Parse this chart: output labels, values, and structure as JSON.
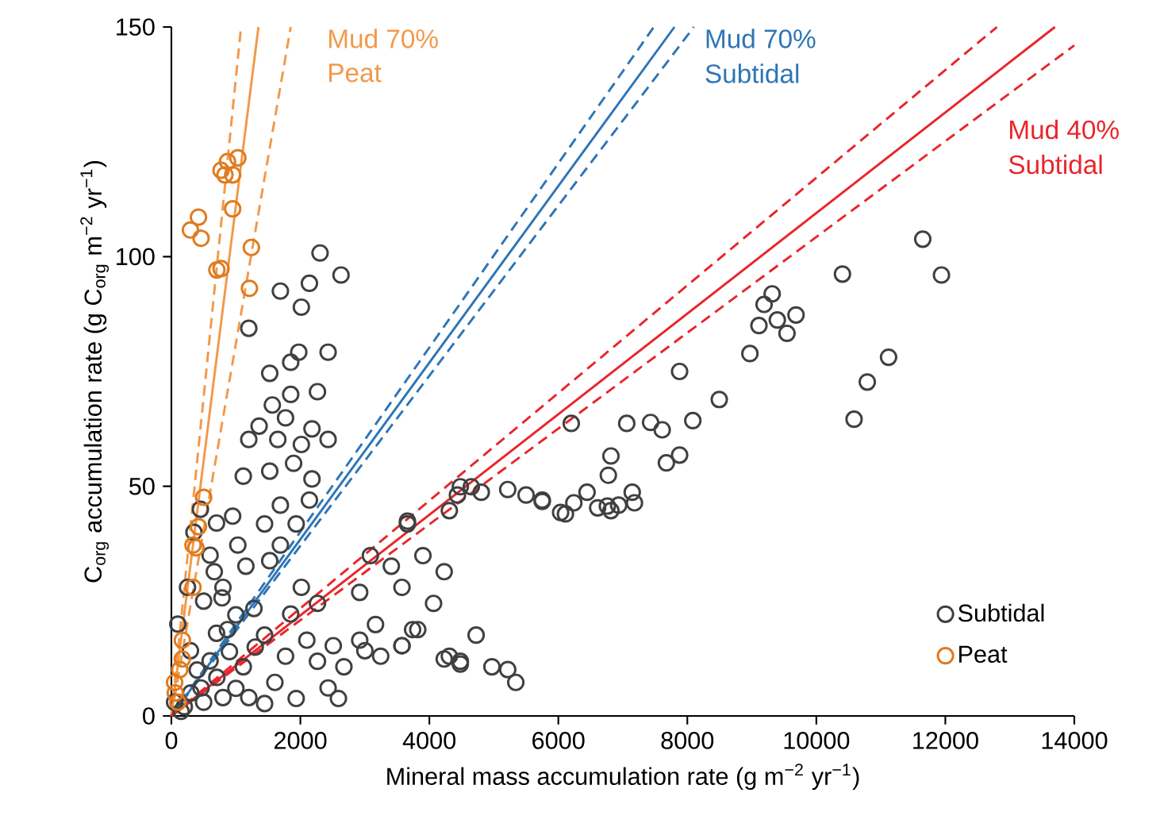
{
  "chart_data": {
    "type": "scatter",
    "xlabel": "Mineral mass accumulation rate (g m$^{−2}$ yr$^{−1}$)",
    "ylabel": "C$_{org}$ accumulation rate (g C$_{org}$ m$^{−2}$ yr$^{−1}$)",
    "xlim": [
      0,
      14000
    ],
    "ylim": [
      0,
      150
    ],
    "xticks": [
      0,
      2000,
      4000,
      6000,
      8000,
      10000,
      12000,
      14000
    ],
    "yticks": [
      0,
      50,
      100,
      150
    ],
    "legend": "bottom right",
    "marker": "circle",
    "annotations": [
      "Mud 70%",
      "Peat",
      "Mud 70%",
      "Subtidal",
      "Mud 40%",
      "Subtidal"
    ],
    "series": [
      {
        "name": "Subtidal",
        "color": "#404040",
        "x": [
          2305,
          2630,
          2140,
          2015,
          1690,
          1200,
          1975,
          2430,
          1850,
          1525,
          2265,
          1565,
          1850,
          1360,
          1770,
          2180,
          1200,
          1650,
          2015,
          2430,
          1895,
          1115,
          1525,
          2180,
          1690,
          2140,
          950,
          1445,
          1935,
          665,
          1030,
          1690,
          1155,
          1525,
          2015,
          785,
          1280,
          1850,
          2265,
          870,
          1445,
          2100,
          2510,
          1770,
          2265,
          1115,
          2675,
          1605,
          2430,
          1935,
          2590,
          705,
          295,
          460,
          1445,
          3660,
          4435,
          4650,
          3085,
          3410,
          3900,
          4230,
          2920,
          3575,
          4065,
          3165,
          3820,
          2920,
          3575,
          4310,
          4480,
          3245,
          4480,
          4805,
          5215,
          5500,
          5750,
          4310,
          3660,
          4725,
          4230,
          4480,
          4970,
          5215,
          5340,
          3740,
          3000,
          3575,
          6200,
          7060,
          7430,
          7610,
          8085,
          8495,
          10585,
          6815,
          6775,
          7675,
          7880,
          5750,
          6035,
          6110,
          6240,
          6445,
          6610,
          6760,
          6815,
          6935,
          7145,
          7180,
          11650,
          11940,
          10405,
          9315,
          9190,
          9110,
          9395,
          9685,
          9545,
          8970,
          11120,
          10790,
          7880,
          200,
          300,
          400,
          500,
          600,
          700,
          800,
          900,
          1000,
          100,
          250,
          350,
          450,
          600,
          700,
          500,
          1000,
          1200,
          1300,
          800,
          150,
          50
        ],
        "values": [
          100.8,
          96,
          94.2,
          89,
          92.5,
          84.4,
          79.2,
          79.2,
          77,
          74.6,
          70.6,
          67.7,
          70,
          63.1,
          64.9,
          62.5,
          60.2,
          60.2,
          59.1,
          60.2,
          55,
          52.2,
          53.3,
          51.6,
          45.9,
          47,
          43.5,
          41.8,
          41.8,
          31.4,
          37.2,
          37.2,
          32.6,
          33.8,
          28,
          25.7,
          23.4,
          22.2,
          24.5,
          18.8,
          17.6,
          16.5,
          15.3,
          13,
          11.9,
          10.7,
          10.7,
          7.3,
          6.1,
          3.8,
          3.8,
          8.4,
          14.2,
          6.1,
          2.7,
          41.8,
          48.1,
          49.9,
          34.9,
          32.6,
          34.9,
          31.4,
          26.9,
          28,
          24.5,
          19.9,
          18.8,
          16.5,
          15.3,
          13,
          11.3,
          13,
          49.9,
          48.7,
          49.3,
          48.1,
          47,
          44.7,
          42.4,
          17.6,
          12.4,
          11.9,
          10.7,
          10.1,
          7.3,
          18.8,
          14.2,
          15.3,
          63.7,
          63.7,
          63.9,
          62.3,
          64.3,
          68.9,
          64.6,
          56.6,
          52.4,
          55.1,
          56.8,
          46.7,
          44.3,
          44,
          46.4,
          48.7,
          45.3,
          45.7,
          44.7,
          45.9,
          48.7,
          46.4,
          103.8,
          96,
          96.2,
          91.9,
          89.6,
          85,
          86.2,
          87.3,
          83.3,
          78.9,
          78.1,
          72.7,
          75,
          2,
          5,
          10,
          3,
          12,
          18,
          4,
          14,
          22,
          20,
          28,
          40,
          45,
          35,
          42,
          25,
          6,
          4,
          15,
          28,
          1,
          3
        ]
      },
      {
        "name": "Peat",
        "color": "#e07b20",
        "x": [
          770,
          870,
          1030,
          950,
          830,
          950,
          295,
          420,
          460,
          705,
          770,
          1240,
          1210,
          500,
          420,
          335,
          380,
          335,
          170,
          170,
          130,
          50,
          60,
          100
        ],
        "values": [
          118.8,
          120.7,
          121.5,
          117.8,
          117.8,
          110.4,
          105.8,
          108.6,
          104,
          97.1,
          97.4,
          102,
          93.1,
          47.6,
          41.2,
          37.2,
          36.6,
          28,
          16.5,
          12.4,
          10.1,
          7.3,
          5,
          3
        ]
      },
      {
        "color": "#f2994a",
        "type": "line",
        "marker": "none",
        "line_style": "solid",
        "x": [
          0,
          1350
        ],
        "values": [
          0,
          150
        ]
      },
      {
        "color": "#f2994a",
        "type": "line",
        "marker": "none",
        "line_style": "dashed",
        "x": [
          0,
          1080
        ],
        "values": [
          0,
          150
        ]
      },
      {
        "color": "#f2994a",
        "type": "line",
        "marker": "none",
        "line_style": "dashed",
        "x": [
          0,
          1850
        ],
        "values": [
          0,
          150
        ]
      },
      {
        "color": "#2e75b6",
        "type": "line",
        "marker": "none",
        "line_style": "solid",
        "x": [
          0,
          7800
        ],
        "values": [
          0,
          150
        ]
      },
      {
        "color": "#2e75b6",
        "type": "line",
        "marker": "none",
        "line_style": "dashed",
        "x": [
          0,
          7480
        ],
        "values": [
          0,
          150
        ]
      },
      {
        "color": "#2e75b6",
        "type": "line",
        "marker": "none",
        "line_style": "dashed",
        "x": [
          0,
          8100
        ],
        "values": [
          0,
          150
        ]
      },
      {
        "color": "#e8262b",
        "type": "line",
        "marker": "none",
        "line_style": "solid",
        "x": [
          0,
          13700
        ],
        "values": [
          0,
          150
        ]
      },
      {
        "color": "#e8262b",
        "type": "line",
        "marker": "none",
        "line_style": "dashed",
        "x": [
          0,
          12800
        ],
        "values": [
          0,
          150
        ]
      },
      {
        "color": "#e8262b",
        "type": "line",
        "marker": "none",
        "line_style": "dashed",
        "x": [
          0,
          14000
        ],
        "values": [
          0,
          146
        ]
      }
    ]
  }
}
